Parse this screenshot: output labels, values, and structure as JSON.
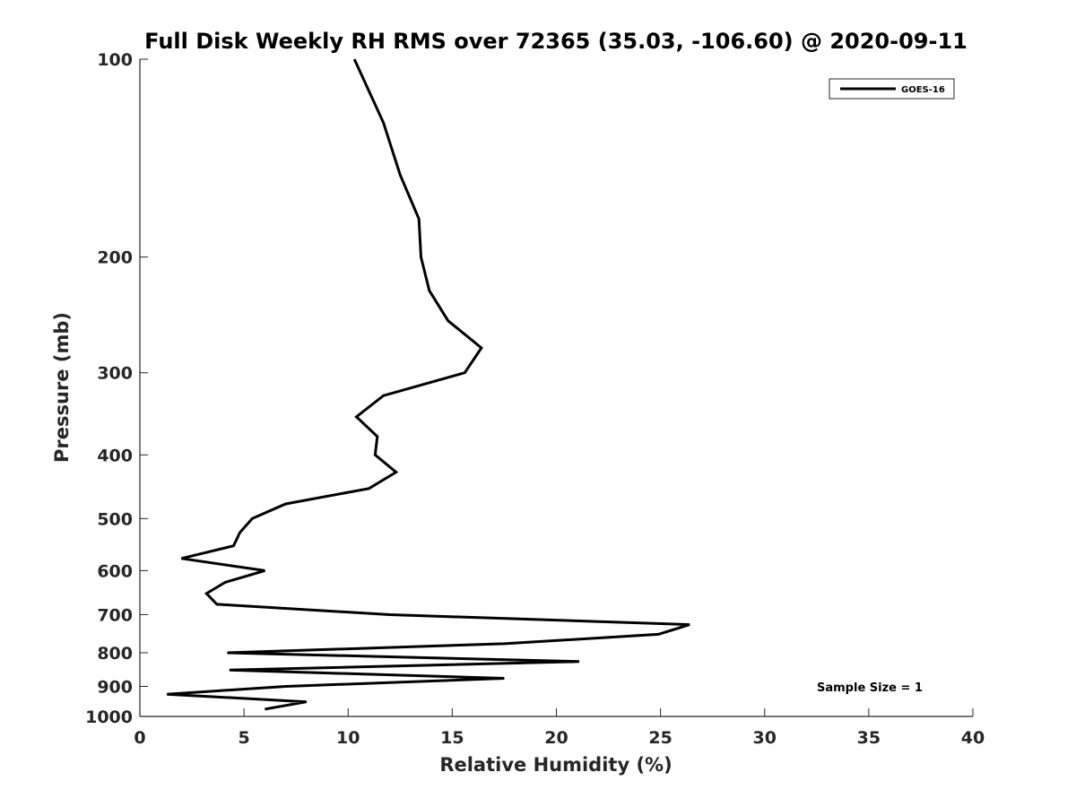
{
  "chart_data": {
    "type": "line",
    "title": "Full Disk Weekly RH RMS over 72365 (35.03, -106.60) @ 2020-09-11",
    "xlabel": "Relative Humidity (%)",
    "ylabel": "Pressure (mb)",
    "xlim": [
      0,
      40
    ],
    "ylim": [
      100,
      1000
    ],
    "y_scale": "log",
    "y_reversed": true,
    "x_ticks": [
      0,
      5,
      10,
      15,
      20,
      25,
      30,
      35,
      40
    ],
    "y_ticks": [
      100,
      200,
      300,
      400,
      500,
      600,
      700,
      800,
      900,
      1000
    ],
    "grid": false,
    "legend_position": "top-right",
    "annotation": "Sample Size = 1",
    "series": [
      {
        "name": "GOES-16",
        "color": "#000000",
        "points": [
          {
            "x": 10.3,
            "p": 100
          },
          {
            "x": 11.7,
            "p": 125
          },
          {
            "x": 12.5,
            "p": 150
          },
          {
            "x": 13.4,
            "p": 175
          },
          {
            "x": 13.5,
            "p": 200
          },
          {
            "x": 13.9,
            "p": 225
          },
          {
            "x": 14.8,
            "p": 250
          },
          {
            "x": 16.4,
            "p": 275
          },
          {
            "x": 15.6,
            "p": 300
          },
          {
            "x": 11.7,
            "p": 325
          },
          {
            "x": 10.4,
            "p": 350
          },
          {
            "x": 11.4,
            "p": 375
          },
          {
            "x": 11.3,
            "p": 400
          },
          {
            "x": 12.3,
            "p": 425
          },
          {
            "x": 11.0,
            "p": 450
          },
          {
            "x": 7.0,
            "p": 475
          },
          {
            "x": 5.4,
            "p": 500
          },
          {
            "x": 4.8,
            "p": 525
          },
          {
            "x": 4.5,
            "p": 550
          },
          {
            "x": 2.0,
            "p": 575
          },
          {
            "x": 6.0,
            "p": 600
          },
          {
            "x": 4.1,
            "p": 625
          },
          {
            "x": 3.2,
            "p": 650
          },
          {
            "x": 3.7,
            "p": 675
          },
          {
            "x": 12.0,
            "p": 700
          },
          {
            "x": 26.4,
            "p": 725
          },
          {
            "x": 24.9,
            "p": 750
          },
          {
            "x": 17.5,
            "p": 775
          },
          {
            "x": 4.2,
            "p": 800
          },
          {
            "x": 21.1,
            "p": 825
          },
          {
            "x": 4.3,
            "p": 850
          },
          {
            "x": 17.5,
            "p": 875
          },
          {
            "x": 7.0,
            "p": 900
          },
          {
            "x": 1.3,
            "p": 925
          },
          {
            "x": 8.0,
            "p": 950
          },
          {
            "x": 6.0,
            "p": 975
          }
        ]
      }
    ]
  }
}
